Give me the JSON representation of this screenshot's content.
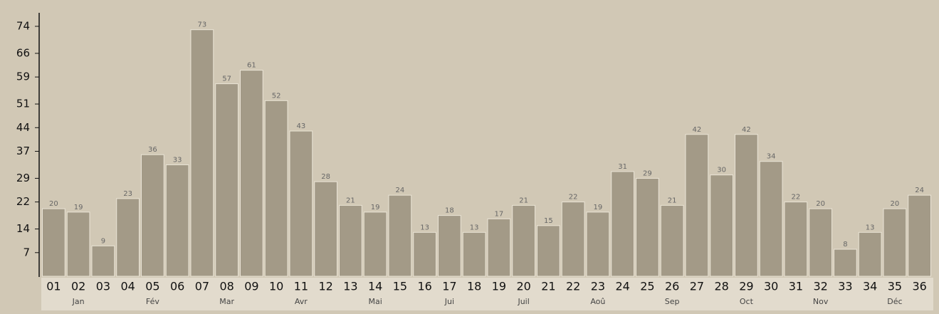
{
  "chart_data": {
    "type": "bar",
    "categories": [
      "01",
      "02",
      "03",
      "04",
      "05",
      "06",
      "07",
      "08",
      "09",
      "10",
      "11",
      "12",
      "13",
      "14",
      "15",
      "16",
      "17",
      "18",
      "19",
      "20",
      "21",
      "22",
      "23",
      "24",
      "25",
      "26",
      "27",
      "28",
      "29",
      "30",
      "31",
      "32",
      "33",
      "34",
      "35",
      "36"
    ],
    "months": [
      null,
      "Jan",
      null,
      null,
      "Fév",
      null,
      null,
      "Mar",
      null,
      null,
      "Avr",
      null,
      null,
      "Mai",
      null,
      null,
      "Jui",
      null,
      null,
      "Juil",
      null,
      null,
      "Aoû",
      null,
      null,
      "Sep",
      null,
      null,
      "Oct",
      null,
      null,
      "Nov",
      null,
      null,
      "Déc",
      null
    ],
    "values": [
      20,
      19,
      9,
      23,
      36,
      33,
      73,
      57,
      61,
      52,
      43,
      28,
      21,
      19,
      24,
      13,
      18,
      13,
      17,
      21,
      15,
      22,
      19,
      31,
      29,
      21,
      42,
      30,
      42,
      34,
      22,
      20,
      8,
      13,
      20,
      24
    ],
    "color": "#a39a87",
    "ylim": [
      0,
      78
    ],
    "yticks": [
      7,
      14,
      22,
      29,
      37,
      44,
      51,
      59,
      66,
      74
    ]
  }
}
